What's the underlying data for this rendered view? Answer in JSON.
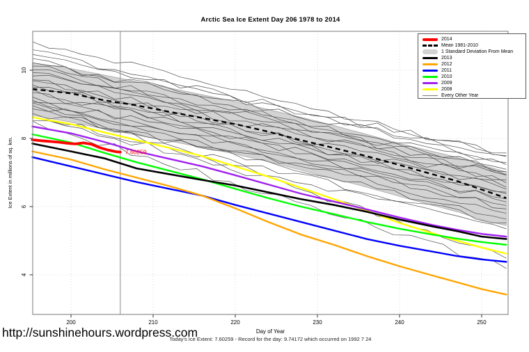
{
  "footer": {
    "url": "http://sunshinehours.wordpress.com",
    "status_line": "Today's Ice Extent: 7.60259 - Record for the day: 9.74172 which occurred on 1992 7 24"
  },
  "legend": {
    "items": [
      {
        "label": "2014",
        "color": "#ff0000",
        "style": "thick"
      },
      {
        "label": "Mean 1981-2010",
        "color": "#000000",
        "style": "dashed"
      },
      {
        "label": "1 Standard Deviation From Mean",
        "color": "#d3d3d3",
        "style": "band"
      },
      {
        "label": "2013",
        "color": "#000000",
        "style": "medium"
      },
      {
        "label": "2012",
        "color": "#ffa500",
        "style": "medium"
      },
      {
        "label": "2011",
        "color": "#0000ff",
        "style": "medium"
      },
      {
        "label": "2010",
        "color": "#00ff00",
        "style": "medium"
      },
      {
        "label": "2009",
        "color": "#a020f0",
        "style": "medium"
      },
      {
        "label": "2008",
        "color": "#ffff00",
        "style": "medium"
      },
      {
        "label": "Every Other Year",
        "color": "#777777",
        "style": "thin"
      }
    ]
  },
  "chart_data": {
    "type": "line",
    "title": "Arctic Sea Ice Extent Day 206 1978 to 2014",
    "xlabel": "Day of Year",
    "ylabel": "Ice Extent in millions of sq. km.",
    "xticks": [
      200,
      210,
      220,
      230,
      240,
      250
    ],
    "yticks": [
      4,
      6,
      8,
      10
    ],
    "xlim": [
      195.3,
      253.3
    ],
    "ylim": [
      2.84,
      11.14
    ],
    "grid": "dotted, both axes",
    "legend_position": "top-right",
    "vline_day": 206,
    "annotation": {
      "text": "7.60259",
      "day": 206.6,
      "value": 7.6,
      "color": "#ff0000"
    },
    "days": [
      195.3,
      200,
      204,
      208,
      212,
      216,
      220,
      224,
      228,
      232,
      236,
      240,
      244,
      247,
      250,
      253
    ],
    "band": {
      "label": "1 Standard Deviation From Mean",
      "fill": "#d3d3d3",
      "top": [
        10.22,
        10.05,
        9.86,
        9.67,
        9.48,
        9.28,
        9.08,
        8.85,
        8.62,
        8.38,
        8.12,
        7.85,
        7.62,
        7.45,
        7.22,
        7.02
      ],
      "bottom": [
        8.68,
        8.48,
        8.28,
        8.1,
        7.92,
        7.74,
        7.54,
        7.32,
        7.07,
        6.82,
        6.57,
        6.3,
        6.04,
        5.85,
        5.62,
        5.44
      ]
    },
    "mean": {
      "name": "Mean 1981-2010",
      "color": "#000000",
      "width": 2.4,
      "dash": "7,5",
      "values": [
        9.45,
        9.32,
        9.12,
        8.97,
        8.78,
        8.6,
        8.42,
        8.2,
        7.95,
        7.72,
        7.48,
        7.22,
        6.95,
        6.75,
        6.5,
        6.25
      ]
    },
    "series": [
      {
        "name": "2014",
        "color": "#ff0000",
        "width": 3.8,
        "days": [
          195.3,
          196.5,
          197.5,
          198.5,
          199.5,
          200.5,
          201.5,
          202.5,
          203.5,
          204.5,
          205.5,
          206
        ],
        "values": [
          7.96,
          7.93,
          7.91,
          7.89,
          7.86,
          7.84,
          7.87,
          7.83,
          7.73,
          7.66,
          7.61,
          7.6
        ]
      },
      {
        "name": "2013",
        "color": "#000000",
        "width": 2.6,
        "values": [
          7.85,
          7.62,
          7.42,
          7.12,
          6.95,
          6.78,
          6.62,
          6.42,
          6.22,
          6.05,
          5.85,
          5.62,
          5.42,
          5.28,
          5.12,
          5.05
        ]
      },
      {
        "name": "2012",
        "color": "#ffa500",
        "width": 2.4,
        "values": [
          7.62,
          7.38,
          7.1,
          6.85,
          6.6,
          6.32,
          5.95,
          5.55,
          5.18,
          4.88,
          4.55,
          4.25,
          3.98,
          3.78,
          3.58,
          3.42
        ]
      },
      {
        "name": "2011",
        "color": "#0000ff",
        "width": 2.4,
        "values": [
          7.45,
          7.18,
          6.95,
          6.72,
          6.52,
          6.32,
          6.05,
          5.8,
          5.55,
          5.3,
          5.05,
          4.85,
          4.68,
          4.55,
          4.45,
          4.38
        ]
      },
      {
        "name": "2010",
        "color": "#00ff00",
        "width": 2.4,
        "values": [
          8.12,
          7.88,
          7.58,
          7.3,
          7.05,
          6.8,
          6.52,
          6.25,
          6.0,
          5.78,
          5.55,
          5.35,
          5.18,
          5.06,
          4.96,
          4.88
        ]
      },
      {
        "name": "2009",
        "color": "#a020f0",
        "width": 2.4,
        "values": [
          8.35,
          8.15,
          7.9,
          7.62,
          7.4,
          7.18,
          6.92,
          6.65,
          6.38,
          6.15,
          5.92,
          5.68,
          5.46,
          5.32,
          5.2,
          5.12
        ]
      },
      {
        "name": "2008",
        "color": "#ffff00",
        "width": 2.4,
        "values": [
          8.62,
          8.42,
          8.18,
          7.95,
          7.72,
          7.48,
          7.18,
          6.88,
          6.55,
          6.22,
          5.88,
          5.52,
          5.22,
          5.0,
          4.8,
          4.62
        ]
      }
    ],
    "other_years": {
      "label": "Every Other Year",
      "color": "#4a4a4a",
      "width": 0.7,
      "jitter": 0.22,
      "step": 2,
      "lines": [
        [
          10.85,
          7.52,
          1
        ],
        [
          10.58,
          7.28,
          2
        ],
        [
          10.45,
          7.55,
          3
        ],
        [
          10.32,
          7.02,
          4
        ],
        [
          10.22,
          7.45,
          5
        ],
        [
          10.12,
          6.92,
          6
        ],
        [
          10.02,
          7.25,
          7
        ],
        [
          9.95,
          6.72,
          8
        ],
        [
          9.85,
          7.12,
          9
        ],
        [
          9.75,
          6.52,
          10
        ],
        [
          9.68,
          6.95,
          11
        ],
        [
          9.58,
          6.35,
          12
        ],
        [
          9.5,
          6.78,
          13
        ],
        [
          9.42,
          6.15,
          14
        ],
        [
          9.32,
          6.6,
          15
        ],
        [
          9.22,
          5.95,
          16
        ],
        [
          9.12,
          6.45,
          17
        ],
        [
          9.05,
          5.8,
          18
        ],
        [
          8.95,
          6.25,
          19
        ],
        [
          8.85,
          5.65,
          20
        ],
        [
          8.75,
          6.05,
          21
        ],
        [
          8.65,
          5.5,
          22
        ],
        [
          8.55,
          5.32,
          23
        ],
        [
          8.48,
          4.2,
          24
        ],
        [
          9.05,
          4.5,
          25
        ]
      ]
    }
  }
}
